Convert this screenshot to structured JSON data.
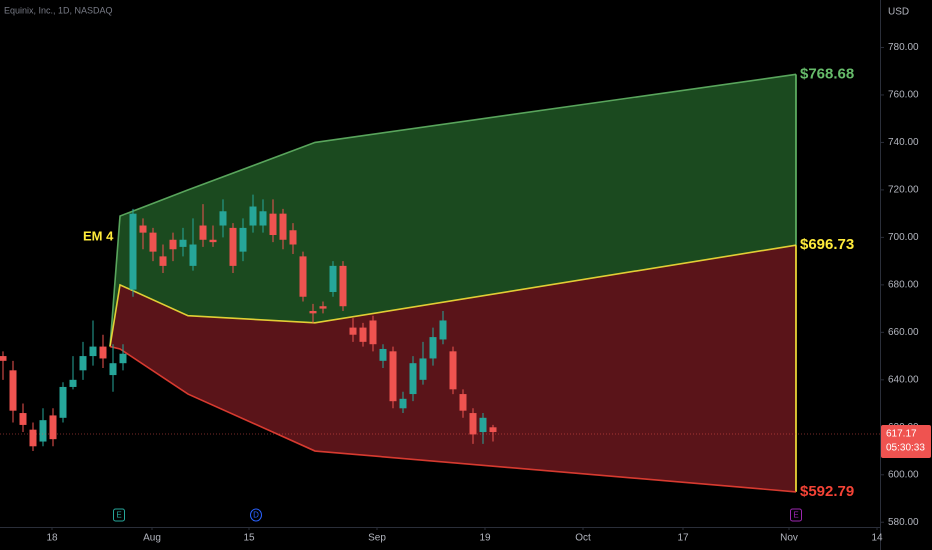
{
  "chart_data": {
    "type": "candlestick",
    "title": "Equinix, Inc., 1D, NASDAQ",
    "y_axis_label": "USD",
    "xlim": [
      -0.3,
      87.7
    ],
    "ylim": [
      578,
      800
    ],
    "grid": false,
    "xticks": [
      {
        "value": 4.9,
        "label": "18"
      },
      {
        "value": 14.9,
        "label": "Aug"
      },
      {
        "value": 24.6,
        "label": "15"
      },
      {
        "value": 37.4,
        "label": "Sep"
      },
      {
        "value": 48.2,
        "label": "19"
      },
      {
        "value": 58.0,
        "label": "Oct"
      },
      {
        "value": 68.0,
        "label": "17"
      },
      {
        "value": 78.6,
        "label": "Nov"
      },
      {
        "value": 87.4,
        "label": "14"
      }
    ],
    "yticks": [
      {
        "value": 580,
        "label": "580.00"
      },
      {
        "value": 600,
        "label": "600.00"
      },
      {
        "value": 620,
        "label": "620.00"
      },
      {
        "value": 640,
        "label": "640.00"
      },
      {
        "value": 660,
        "label": "660.00"
      },
      {
        "value": 680,
        "label": "680.00"
      },
      {
        "value": 700,
        "label": "700.00"
      },
      {
        "value": 720,
        "label": "720.00"
      },
      {
        "value": 740,
        "label": "740.00"
      },
      {
        "value": 760,
        "label": "760.00"
      },
      {
        "value": 780,
        "label": "780.00"
      }
    ],
    "up_color": "#26a69a",
    "down_color": "#ef5350",
    "candles": {
      "open": [
        650,
        644,
        626,
        619,
        614,
        625,
        624,
        637,
        644,
        650,
        654,
        642,
        647,
        678,
        705,
        702,
        692,
        699,
        696,
        688,
        705,
        699,
        705,
        704,
        694,
        705,
        705,
        710,
        710,
        703,
        692,
        669,
        671,
        677,
        688,
        662,
        662,
        665,
        648,
        652,
        628,
        634,
        640,
        649,
        657,
        652,
        634,
        626,
        618,
        620
      ],
      "high": [
        652,
        648,
        630,
        622,
        628,
        628,
        639,
        650,
        656,
        665,
        659,
        655,
        655,
        712,
        708,
        704,
        697,
        702,
        704,
        708,
        714,
        705,
        716,
        706,
        708,
        718,
        716,
        716,
        712,
        706,
        694,
        672,
        673,
        690,
        690,
        666,
        664,
        667,
        655,
        654,
        635,
        650,
        656,
        662,
        669,
        654,
        636,
        628,
        626,
        621
      ],
      "low": [
        640,
        622,
        618,
        610,
        612,
        612,
        622,
        636,
        640,
        646,
        645,
        635,
        644,
        675,
        695,
        690,
        685,
        690,
        692,
        686,
        696,
        696,
        700,
        685,
        690,
        702,
        702,
        698,
        695,
        693,
        673,
        664,
        668,
        675,
        669,
        656,
        654,
        652,
        645,
        628,
        626,
        631,
        638,
        646,
        655,
        634,
        624,
        613,
        613,
        614
      ],
      "close": [
        648,
        627,
        621,
        612,
        623,
        615,
        637,
        640,
        650,
        654,
        649,
        647,
        651,
        710,
        702,
        694,
        688,
        695,
        699,
        697,
        699,
        698,
        711,
        688,
        704,
        713,
        711,
        701,
        699,
        697,
        675,
        668,
        670,
        688,
        671,
        659,
        656,
        655,
        653,
        631,
        632,
        647,
        649,
        658,
        665,
        636,
        627,
        617,
        624,
        618
      ]
    },
    "bands": {
      "x": [
        10.7,
        11.7,
        18.5,
        31.2,
        79.3
      ],
      "lines": [
        {
          "values": [
            654,
            709,
            720,
            740,
            768.68
          ],
          "color": "#66bb6a",
          "end_label": "$768.68"
        },
        {
          "values": [
            654,
            680,
            667,
            664,
            696.73
          ],
          "color": "#ffeb3b",
          "end_label": "$696.73"
        },
        {
          "values": [
            654,
            653,
            634,
            610,
            592.79
          ],
          "color": "#f44336",
          "end_label": "$592.79"
        }
      ],
      "fills": [
        "#1b4a1f",
        "#5a1419"
      ]
    },
    "annotation": "EM 4",
    "last_price": {
      "value": 617.17,
      "label": "617.17"
    },
    "countdown": "05:30:33",
    "events": [
      {
        "x": 11.6,
        "label": "E",
        "color": "#26a69a"
      },
      {
        "x": 25.3,
        "label": "D",
        "color": "#2962ff"
      },
      {
        "x": 79.3,
        "label": "E",
        "color": "#9c27b0"
      }
    ]
  }
}
